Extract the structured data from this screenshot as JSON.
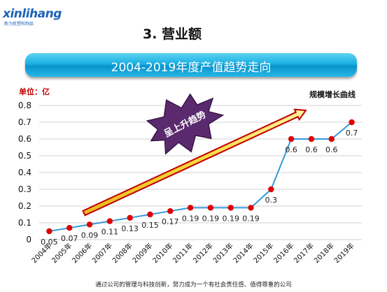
{
  "logo": {
    "brand": "xinlihang",
    "tagline": "新力航塑料制品"
  },
  "section_title": "3. 营业额",
  "banner_title": "2004-2019年度产值趋势走向",
  "footer": "通过公司的管理与科技创新，努力成为一个有社会责任感、值得尊重的公司",
  "colors": {
    "banner": "#1ab0e3",
    "line": "#3399dd",
    "marker": "#e00000",
    "arrow_fill": "#f6d83a",
    "arrow_border": "#c00000",
    "badge": "#5b2a6e"
  },
  "chart_data": {
    "type": "line",
    "title": "规模增长曲线",
    "ylabel": "单位：亿",
    "xlabel": "",
    "categories": [
      "2004年",
      "2005年",
      "2006年",
      "2007年",
      "2008年",
      "2009年",
      "2010年",
      "2011年",
      "2012年",
      "2013年",
      "2014年",
      "2015年",
      "2016年",
      "2017年",
      "2018年",
      "2019年"
    ],
    "values": [
      0.05,
      0.07,
      0.09,
      0.11,
      0.13,
      0.15,
      0.17,
      0.19,
      0.19,
      0.19,
      0.19,
      0.3,
      0.6,
      0.6,
      0.6,
      0.7
    ],
    "data_labels": [
      "0.05",
      "0.07",
      "0.09",
      "0.11",
      "0.13",
      "0.15",
      "0.17",
      "0.19",
      "0.19",
      "0.19",
      "0.19",
      "0.3",
      "0.6",
      "0.6",
      "0.6",
      "0.7"
    ],
    "ylim": [
      0,
      0.8
    ],
    "yticks": [
      0,
      0.1,
      0.2,
      0.3,
      0.4,
      0.5,
      0.6,
      0.7,
      0.8
    ],
    "ytick_labels": [
      "0",
      "0.1",
      "0.2",
      "0.3",
      "0.4",
      "0.5",
      "0.6",
      "0.7",
      "0.8"
    ],
    "grid": true,
    "annotation": "呈上升趋势"
  }
}
